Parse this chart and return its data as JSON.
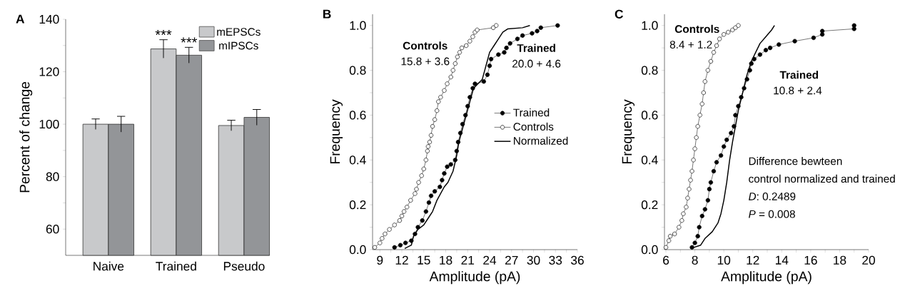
{
  "chart_data": [
    {
      "type": "bar",
      "title": "A",
      "ylabel": "Percent of change",
      "categories": [
        "Naive",
        "Trained",
        "Pseudo"
      ],
      "series": [
        {
          "name": "mEPSCs",
          "color": "#c8c9cb",
          "values": [
            100,
            128.7,
            99.5
          ],
          "errors": [
            2,
            3.5,
            2
          ]
        },
        {
          "name": "mIPSCs",
          "color": "#939598",
          "values": [
            100,
            126.3,
            102.6
          ],
          "errors": [
            3,
            3,
            3
          ]
        }
      ],
      "ylim": [
        50,
        140
      ],
      "yticks": [
        60,
        {
          "value": 70,
          "label": null
        },
        80,
        {
          "value": 90,
          "label": null
        },
        100,
        {
          "value": 110,
          "label": null
        },
        120,
        {
          "value": 130,
          "label": null
        },
        140
      ],
      "annotations": [
        "***",
        "***"
      ],
      "legend": "top right"
    },
    {
      "type": "line",
      "title": "B",
      "xlabel": "Amplitude (pA)",
      "ylabel": "Frequency",
      "series": [
        {
          "name": "Trained",
          "color": "#000000",
          "marker": "circle",
          "x": [
            11,
            11.8,
            12.5,
            13.3,
            13.8,
            14.2,
            14.8,
            15.3,
            15.7,
            16,
            16.5,
            17.2,
            17.5,
            17.8,
            18.2,
            18.7,
            19.3,
            19.5,
            19.7,
            20,
            20.3,
            20.7,
            21,
            21.3,
            21.7,
            22,
            23.2,
            23.7,
            24,
            24.2,
            25.2,
            26,
            26.3,
            26.8,
            27.8,
            28.5,
            29.8,
            30.5,
            31,
            33.3
          ],
          "values": [
            0.01,
            0.02,
            0.03,
            0.04,
            0.07,
            0.1,
            0.13,
            0.17,
            0.21,
            0.24,
            0.26,
            0.28,
            0.31,
            0.34,
            0.37,
            0.38,
            0.4,
            0.44,
            0.48,
            0.52,
            0.56,
            0.6,
            0.64,
            0.68,
            0.72,
            0.74,
            0.75,
            0.78,
            0.82,
            0.85,
            0.87,
            0.88,
            0.9,
            0.92,
            0.94,
            0.955,
            0.965,
            0.975,
            0.99,
            1.0
          ]
        },
        {
          "name": "Controls",
          "color": "#ffffff",
          "marker": "circle",
          "x": [
            8.3,
            9,
            9.3,
            9.7,
            10.3,
            11,
            11.7,
            12,
            12.3,
            12.7,
            13.2,
            13.8,
            14,
            14.3,
            14.7,
            15,
            15.3,
            15.5,
            15.6,
            15.8,
            16,
            16.2,
            16.5,
            16.8,
            17,
            17.3,
            17.8,
            18.2,
            18.7,
            19,
            19.3,
            19.6,
            19.9,
            20.2,
            20.8,
            21.3,
            21.7,
            22,
            22.3,
            24.5,
            24.9
          ],
          "values": [
            0.01,
            0.03,
            0.05,
            0.07,
            0.09,
            0.11,
            0.13,
            0.15,
            0.17,
            0.19,
            0.22,
            0.25,
            0.27,
            0.3,
            0.33,
            0.36,
            0.4,
            0.44,
            0.46,
            0.48,
            0.51,
            0.55,
            0.58,
            0.62,
            0.66,
            0.68,
            0.71,
            0.74,
            0.77,
            0.8,
            0.83,
            0.86,
            0.88,
            0.9,
            0.91,
            0.93,
            0.95,
            0.97,
            0.98,
            0.99,
            1.0
          ]
        },
        {
          "name": "Normalized",
          "color": "#000000",
          "marker": "none",
          "x": [
            12.4,
            13.3,
            13.6,
            14.2,
            15,
            15.6,
            16.2,
            16.8,
            17.3,
            17.8,
            18.3,
            19,
            19.5,
            19.8,
            20.3,
            20.8,
            21.3,
            21.8,
            22.4,
            23,
            23.5,
            24,
            24.6,
            25.2,
            25.8,
            26.5,
            28.5,
            29.5
          ],
          "values": [
            0.005,
            0.02,
            0.06,
            0.09,
            0.11,
            0.14,
            0.17,
            0.22,
            0.25,
            0.28,
            0.3,
            0.35,
            0.42,
            0.48,
            0.54,
            0.6,
            0.66,
            0.72,
            0.74,
            0.76,
            0.82,
            0.88,
            0.91,
            0.94,
            0.97,
            0.985,
            0.99,
            1.0
          ]
        }
      ],
      "xlim": [
        8,
        36
      ],
      "xticks": [
        9,
        {
          "value": 10.5,
          "label": null
        },
        12,
        {
          "value": 13.5,
          "label": null
        },
        15,
        {
          "value": 16.5,
          "label": null
        },
        18,
        {
          "value": 19.5,
          "label": null
        },
        21,
        {
          "value": 22.5,
          "label": null
        },
        24,
        {
          "value": 25.5,
          "label": null
        },
        27,
        {
          "value": 28.5,
          "label": null
        },
        30,
        {
          "value": 31.5,
          "label": null
        },
        33,
        {
          "value": 34.5,
          "label": null
        },
        36
      ],
      "ylim": [
        0,
        1.05
      ],
      "yticks": [
        {
          "value": 0,
          "label": "0.0"
        },
        {
          "value": 0.1,
          "label": null
        },
        0.2,
        {
          "value": 0.3,
          "label": null
        },
        0.4,
        {
          "value": 0.5,
          "label": null
        },
        0.6,
        {
          "value": 0.7,
          "label": null
        },
        0.8,
        {
          "value": 0.9,
          "label": null
        },
        {
          "value": 1,
          "label": "1.0"
        }
      ],
      "annotations": [
        "Controls",
        "15.8 + 3.6",
        "Trained",
        "20.0 + 4.6"
      ],
      "legend": "right"
    },
    {
      "type": "line",
      "title": "C",
      "xlabel": "Amplitude (pA)",
      "ylabel": "Frequency",
      "series": [
        {
          "color": "#ffffff",
          "marker": "circle",
          "x": [
            6,
            6.2,
            6.3,
            6.6,
            6.9,
            7.1,
            7.2,
            7.4,
            7.5,
            7.6,
            7.7,
            7.8,
            7.9,
            8,
            8.1,
            8.2,
            8.35,
            8.5,
            8.6,
            8.7,
            8.9,
            9.1,
            9.3,
            9.5,
            9.7,
            10,
            10.3,
            10.6,
            10.8,
            11
          ],
          "values": [
            0.01,
            0.04,
            0.06,
            0.07,
            0.1,
            0.13,
            0.16,
            0.19,
            0.23,
            0.27,
            0.31,
            0.35,
            0.4,
            0.45,
            0.5,
            0.55,
            0.6,
            0.65,
            0.7,
            0.75,
            0.8,
            0.84,
            0.88,
            0.91,
            0.94,
            0.96,
            0.97,
            0.98,
            0.99,
            1.0
          ]
        },
        {
          "color": "#000000",
          "marker": "circle",
          "x": [
            7.8,
            8,
            8.2,
            8.3,
            8.5,
            8.7,
            8.9,
            9,
            9.1,
            9.3,
            9.5,
            9.8,
            10,
            10.2,
            10.5,
            10.7,
            10.8,
            11,
            11.2,
            11.4,
            11.6,
            11.8,
            11.9,
            12.1,
            12.5,
            12.9,
            13.2,
            13.8,
            14.9,
            16.2,
            16.8,
            16.8,
            19,
            19
          ],
          "values": [
            0.01,
            0.03,
            0.06,
            0.1,
            0.15,
            0.18,
            0.22,
            0.27,
            0.3,
            0.35,
            0.39,
            0.42,
            0.46,
            0.49,
            0.52,
            0.55,
            0.6,
            0.64,
            0.68,
            0.72,
            0.76,
            0.8,
            0.83,
            0.85,
            0.87,
            0.89,
            0.9,
            0.915,
            0.93,
            0.945,
            0.96,
            0.975,
            0.985,
            1.0
          ]
        },
        {
          "color": "#000000",
          "marker": "none",
          "x": [
            7.7,
            8.4,
            8.7,
            9.2,
            9.6,
            9.8,
            10,
            10.2,
            10.4,
            10.6,
            10.8,
            11,
            11.3,
            11.6,
            11.9,
            12.2,
            12.5,
            12.9,
            13.3,
            13.5
          ],
          "values": [
            0.005,
            0.02,
            0.05,
            0.08,
            0.12,
            0.16,
            0.22,
            0.3,
            0.4,
            0.48,
            0.55,
            0.62,
            0.7,
            0.78,
            0.84,
            0.88,
            0.92,
            0.95,
            0.98,
            1.0
          ]
        }
      ],
      "xlim": [
        5.9,
        20
      ],
      "xticks": [
        6,
        {
          "value": 7,
          "label": null
        },
        8,
        {
          "value": 9,
          "label": null
        },
        10,
        {
          "value": 11,
          "label": null
        },
        12,
        {
          "value": 13,
          "label": null
        },
        14,
        {
          "value": 15,
          "label": null
        },
        16,
        {
          "value": 17,
          "label": null
        },
        18,
        {
          "value": 19,
          "label": null
        },
        20
      ],
      "ylim": [
        0,
        1.05
      ],
      "yticks": [
        {
          "value": 0,
          "label": "0.0"
        },
        {
          "value": 0.1,
          "label": null
        },
        0.2,
        {
          "value": 0.3,
          "label": null
        },
        0.4,
        {
          "value": 0.5,
          "label": null
        },
        0.6,
        {
          "value": 0.7,
          "label": null
        },
        0.8,
        {
          "value": 0.9,
          "label": null
        },
        {
          "value": 1,
          "label": "1.0"
        }
      ],
      "annotations": [
        "Controls",
        "8.4 + 1.2",
        "Trained",
        "10.8 + 2.4",
        "Difference bewteen",
        "control normalized and trained",
        "*D*: 0.2489",
        "*P* = 0.008"
      ]
    }
  ]
}
